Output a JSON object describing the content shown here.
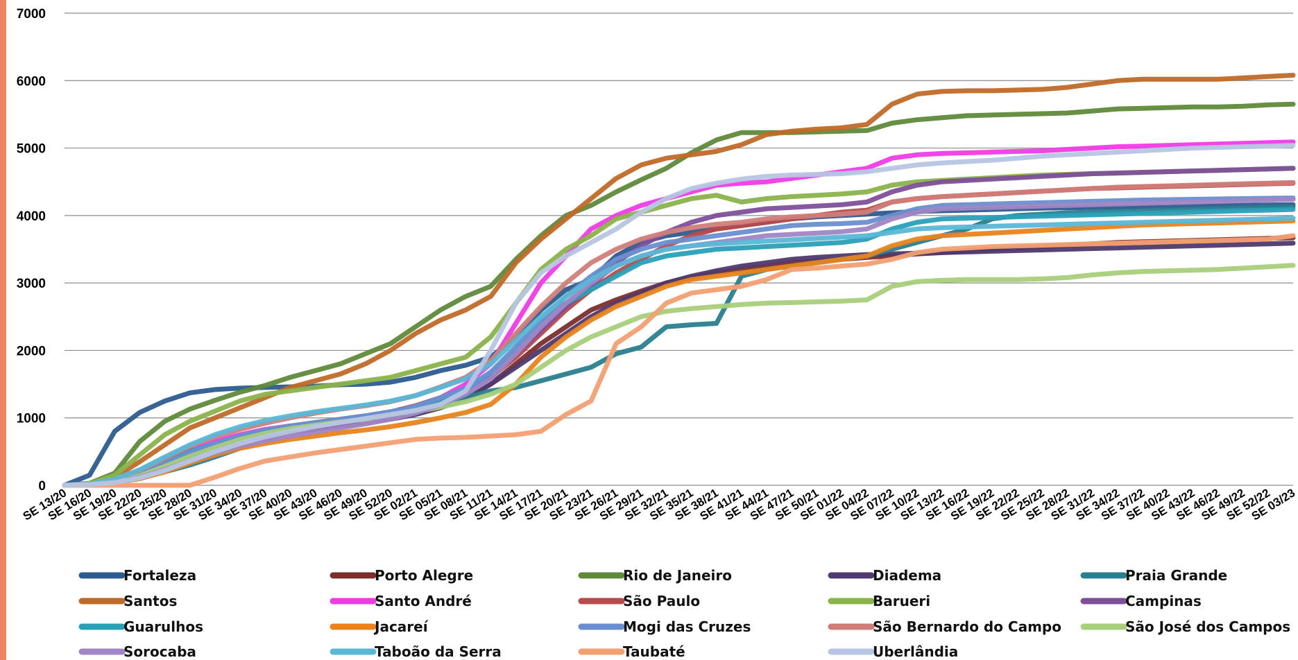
{
  "chart_data": {
    "type": "line",
    "title": "",
    "xlabel": "",
    "ylabel": "",
    "ylim": [
      0,
      7000
    ],
    "yticks": [
      "0",
      "1000",
      "2000",
      "3000",
      "4000",
      "5000",
      "6000",
      "7000"
    ],
    "grid": "horizontal",
    "legend_position": "bottom",
    "x": [
      "SE 13/20",
      "SE 16/20",
      "SE 19/20",
      "SE 22/20",
      "SE 25/20",
      "SE 28/20",
      "SE 31/20",
      "SE 34/20",
      "SE 37/20",
      "SE 40/20",
      "SE 43/20",
      "SE 46/20",
      "SE 49/20",
      "SE 52/20",
      "SE 02/21",
      "SE 05/21",
      "SE 08/21",
      "SE 11/21",
      "SE 14/21",
      "SE 17/21",
      "SE 20/21",
      "SE 23/21",
      "SE 26/21",
      "SE 29/21",
      "SE 32/21",
      "SE 35/21",
      "SE 38/21",
      "SE 41/21",
      "SE 44/21",
      "SE 47/21",
      "SE 50/21",
      "SE 01/22",
      "SE 04/22",
      "SE 07/22",
      "SE 10/22",
      "SE 13/22",
      "SE 16/22",
      "SE 19/22",
      "SE 22/22",
      "SE 25/22",
      "SE 28/22",
      "SE 31/22",
      "SE 34/22",
      "SE 37/22",
      "SE 40/22",
      "SE 43/22",
      "SE 46/22",
      "SE 49/22",
      "SE 52/22",
      "SE 03/23"
    ],
    "series": [
      {
        "name": "Fortaleza",
        "color": "#2c5b8f",
        "values": [
          0,
          150,
          800,
          1080,
          1250,
          1370,
          1420,
          1440,
          1450,
          1460,
          1470,
          1490,
          1500,
          1530,
          1600,
          1700,
          1780,
          1900,
          2200,
          2600,
          2900,
          3050,
          3400,
          3600,
          3700,
          3750,
          3800,
          3850,
          3900,
          3950,
          3980,
          4000,
          4020,
          4040,
          4060,
          4070,
          4080,
          4090,
          4100,
          4110,
          4115,
          4120,
          4125,
          4130,
          4135,
          4140,
          4145,
          4150,
          4155,
          4160
        ]
      },
      {
        "name": "Porto Alegre",
        "color": "#7b2e2e",
        "values": [
          0,
          20,
          80,
          200,
          350,
          500,
          600,
          700,
          780,
          850,
          900,
          950,
          1000,
          1050,
          1100,
          1200,
          1300,
          1500,
          1800,
          2100,
          2350,
          2600,
          2750,
          2880,
          3000,
          3080,
          3150,
          3200,
          3250,
          3300,
          3330,
          3350,
          3380,
          3400,
          3430,
          3450,
          3480,
          3500,
          3520,
          3540,
          3560,
          3580,
          3600,
          3610,
          3620,
          3630,
          3640,
          3650,
          3660,
          3670
        ]
      },
      {
        "name": "Rio de Janeiro",
        "color": "#5f8a3a",
        "values": [
          0,
          30,
          180,
          650,
          950,
          1130,
          1260,
          1380,
          1480,
          1600,
          1700,
          1800,
          1950,
          2100,
          2350,
          2600,
          2800,
          2950,
          3350,
          3700,
          4000,
          4150,
          4350,
          4530,
          4700,
          4930,
          5120,
          5230,
          5230,
          5230,
          5240,
          5250,
          5260,
          5370,
          5420,
          5450,
          5480,
          5490,
          5500,
          5510,
          5520,
          5550,
          5580,
          5590,
          5600,
          5610,
          5610,
          5620,
          5640,
          5650
        ]
      },
      {
        "name": "Diadema",
        "color": "#4e3a6e",
        "values": [
          0,
          15,
          60,
          150,
          280,
          430,
          560,
          650,
          720,
          780,
          830,
          880,
          930,
          980,
          1050,
          1150,
          1280,
          1500,
          1750,
          2000,
          2250,
          2500,
          2700,
          2850,
          3000,
          3100,
          3180,
          3250,
          3300,
          3350,
          3380,
          3400,
          3420,
          3430,
          3440,
          3450,
          3460,
          3470,
          3480,
          3490,
          3500,
          3510,
          3520,
          3530,
          3540,
          3550,
          3560,
          3570,
          3580,
          3590
        ]
      },
      {
        "name": "Praia Grande",
        "color": "#2a7f8f",
        "values": [
          0,
          10,
          40,
          100,
          200,
          300,
          420,
          550,
          680,
          780,
          850,
          900,
          950,
          1000,
          1080,
          1200,
          1300,
          1400,
          1450,
          1550,
          1650,
          1750,
          1950,
          2050,
          2350,
          2380,
          2400,
          3100,
          3200,
          3250,
          3300,
          3350,
          3400,
          3500,
          3600,
          3700,
          3800,
          3950,
          4000,
          4020,
          4040,
          4050,
          4060,
          4070,
          4080,
          4090,
          4100,
          4110,
          4120,
          4130
        ]
      },
      {
        "name": "Santos",
        "color": "#c06a28",
        "values": [
          0,
          20,
          120,
          350,
          600,
          850,
          1000,
          1150,
          1300,
          1450,
          1550,
          1650,
          1800,
          2000,
          2250,
          2450,
          2600,
          2800,
          3300,
          3650,
          3950,
          4250,
          4550,
          4750,
          4850,
          4900,
          4950,
          5050,
          5200,
          5250,
          5280,
          5300,
          5350,
          5650,
          5800,
          5840,
          5850,
          5850,
          5860,
          5870,
          5900,
          5950,
          6000,
          6020,
          6020,
          6020,
          6020,
          6040,
          6060,
          6080
        ]
      },
      {
        "name": "Santo André",
        "color": "#f03ce6",
        "values": [
          0,
          20,
          90,
          200,
          350,
          520,
          650,
          750,
          830,
          880,
          910,
          930,
          960,
          1020,
          1100,
          1300,
          1500,
          1800,
          2400,
          3000,
          3400,
          3800,
          4000,
          4150,
          4250,
          4350,
          4450,
          4480,
          4500,
          4550,
          4600,
          4650,
          4700,
          4850,
          4900,
          4920,
          4930,
          4940,
          4950,
          4960,
          4980,
          5000,
          5020,
          5030,
          5040,
          5050,
          5060,
          5070,
          5080,
          5090
        ]
      },
      {
        "name": "São Paulo",
        "color": "#b84a4a",
        "values": [
          0,
          15,
          70,
          180,
          320,
          470,
          610,
          720,
          800,
          870,
          930,
          980,
          1030,
          1090,
          1180,
          1300,
          1420,
          1600,
          1900,
          2250,
          2600,
          2900,
          3150,
          3350,
          3550,
          3700,
          3800,
          3850,
          3900,
          3950,
          4000,
          4050,
          4080,
          4200,
          4250,
          4280,
          4300,
          4320,
          4340,
          4360,
          4380,
          4400,
          4410,
          4420,
          4430,
          4440,
          4450,
          4460,
          4470,
          4480
        ]
      },
      {
        "name": "Barueri",
        "color": "#8ab34a",
        "values": [
          0,
          25,
          150,
          450,
          750,
          950,
          1100,
          1250,
          1350,
          1400,
          1450,
          1500,
          1550,
          1600,
          1700,
          1800,
          1900,
          2200,
          2700,
          3200,
          3500,
          3700,
          3950,
          4050,
          4150,
          4250,
          4300,
          4200,
          4250,
          4280,
          4300,
          4320,
          4350,
          4450,
          4500,
          4520,
          4540,
          4560,
          4580,
          4600,
          4610,
          4620,
          4630,
          4640,
          4650,
          4660,
          4670,
          4680,
          4690,
          4700
        ]
      },
      {
        "name": "Campinas",
        "color": "#7e4f9a",
        "values": [
          0,
          15,
          60,
          150,
          280,
          420,
          550,
          650,
          720,
          780,
          840,
          900,
          960,
          1030,
          1120,
          1250,
          1380,
          1600,
          1950,
          2300,
          2650,
          2950,
          3300,
          3550,
          3750,
          3900,
          4000,
          4050,
          4100,
          4120,
          4140,
          4160,
          4200,
          4350,
          4450,
          4500,
          4520,
          4540,
          4560,
          4580,
          4600,
          4620,
          4630,
          4640,
          4650,
          4660,
          4670,
          4680,
          4690,
          4700
        ]
      },
      {
        "name": "Guarulhos",
        "color": "#2aa0b8",
        "values": [
          0,
          15,
          70,
          190,
          350,
          500,
          620,
          720,
          800,
          860,
          910,
          960,
          1010,
          1070,
          1150,
          1280,
          1420,
          1650,
          2000,
          2400,
          2700,
          2900,
          3100,
          3300,
          3400,
          3450,
          3500,
          3520,
          3540,
          3560,
          3580,
          3600,
          3650,
          3800,
          3900,
          3950,
          3960,
          3970,
          3980,
          3990,
          4000,
          4010,
          4020,
          4030,
          4040,
          4050,
          4060,
          4070,
          4080,
          4090
        ]
      },
      {
        "name": "Jacareí",
        "color": "#e8841e",
        "values": [
          0,
          10,
          40,
          100,
          200,
          330,
          450,
          550,
          620,
          680,
          730,
          780,
          820,
          870,
          930,
          1000,
          1080,
          1200,
          1500,
          1900,
          2200,
          2450,
          2650,
          2800,
          2950,
          3050,
          3100,
          3150,
          3200,
          3250,
          3300,
          3350,
          3400,
          3550,
          3650,
          3700,
          3720,
          3740,
          3760,
          3780,
          3800,
          3820,
          3840,
          3860,
          3870,
          3880,
          3890,
          3900,
          3910,
          3920
        ]
      },
      {
        "name": "Mogi das Cruzes",
        "color": "#6a8fd0",
        "values": [
          0,
          15,
          65,
          170,
          320,
          480,
          620,
          730,
          820,
          880,
          930,
          980,
          1030,
          1090,
          1170,
          1300,
          1440,
          1680,
          2050,
          2450,
          2800,
          3100,
          3350,
          3500,
          3600,
          3650,
          3700,
          3750,
          3800,
          3850,
          3870,
          3880,
          3900,
          4000,
          4100,
          4150,
          4160,
          4170,
          4180,
          4190,
          4200,
          4210,
          4220,
          4230,
          4235,
          4240,
          4245,
          4250,
          4255,
          4260
        ]
      },
      {
        "name": "São Bernardo do Campo",
        "color": "#d07d7a",
        "values": [
          0,
          20,
          85,
          220,
          400,
          580,
          720,
          830,
          920,
          1000,
          1070,
          1130,
          1180,
          1240,
          1330,
          1460,
          1600,
          1850,
          2250,
          2650,
          3000,
          3300,
          3500,
          3650,
          3750,
          3820,
          3870,
          3900,
          3950,
          3980,
          4000,
          4020,
          4050,
          4200,
          4250,
          4280,
          4300,
          4320,
          4340,
          4360,
          4380,
          4400,
          4420,
          4430,
          4440,
          4450,
          4460,
          4470,
          4480,
          4490
        ]
      },
      {
        "name": "São José dos Campos",
        "color": "#a8cf7a",
        "values": [
          0,
          10,
          50,
          140,
          280,
          430,
          560,
          680,
          770,
          840,
          890,
          940,
          980,
          1030,
          1090,
          1160,
          1240,
          1350,
          1500,
          1750,
          2000,
          2200,
          2350,
          2500,
          2580,
          2620,
          2650,
          2680,
          2700,
          2710,
          2720,
          2730,
          2750,
          2950,
          3020,
          3040,
          3050,
          3050,
          3050,
          3060,
          3080,
          3120,
          3150,
          3170,
          3180,
          3190,
          3200,
          3220,
          3240,
          3260
        ]
      },
      {
        "name": "Sorocaba",
        "color": "#a086c4",
        "values": [
          0,
          10,
          45,
          120,
          230,
          360,
          480,
          580,
          660,
          730,
          790,
          850,
          910,
          980,
          1070,
          1200,
          1350,
          1580,
          1950,
          2350,
          2700,
          3000,
          3250,
          3400,
          3500,
          3550,
          3600,
          3650,
          3700,
          3720,
          3740,
          3760,
          3800,
          3950,
          4050,
          4100,
          4110,
          4120,
          4130,
          4140,
          4150,
          4160,
          4170,
          4180,
          4190,
          4200,
          4210,
          4220,
          4230,
          4240
        ]
      },
      {
        "name": "Taboão da Serra",
        "color": "#5ab7d6",
        "values": [
          0,
          20,
          90,
          230,
          420,
          600,
          750,
          870,
          960,
          1030,
          1090,
          1140,
          1190,
          1250,
          1330,
          1450,
          1580,
          1800,
          2150,
          2500,
          2800,
          3050,
          3250,
          3400,
          3500,
          3550,
          3580,
          3600,
          3620,
          3640,
          3660,
          3680,
          3700,
          3750,
          3800,
          3820,
          3830,
          3840,
          3850,
          3860,
          3870,
          3880,
          3890,
          3900,
          3910,
          3920,
          3930,
          3940,
          3950,
          3960
        ]
      },
      {
        "name": "Taubaté",
        "color": "#f2a072",
        "values": [
          0,
          0,
          0,
          0,
          0,
          0,
          120,
          250,
          360,
          420,
          480,
          530,
          580,
          630,
          680,
          700,
          710,
          730,
          750,
          800,
          1050,
          1250,
          2100,
          2350,
          2700,
          2850,
          2900,
          2950,
          3050,
          3200,
          3220,
          3250,
          3280,
          3350,
          3450,
          3500,
          3520,
          3540,
          3550,
          3560,
          3570,
          3580,
          3590,
          3600,
          3610,
          3620,
          3630,
          3640,
          3650,
          3700
        ]
      },
      {
        "name": "Uberlândia",
        "color": "#b7c5e3",
        "values": [
          0,
          10,
          40,
          110,
          220,
          360,
          500,
          620,
          720,
          800,
          870,
          930,
          990,
          1050,
          1110,
          1200,
          1400,
          2000,
          2700,
          3150,
          3400,
          3600,
          3800,
          4050,
          4250,
          4400,
          4480,
          4540,
          4580,
          4600,
          4610,
          4620,
          4650,
          4700,
          4750,
          4780,
          4800,
          4820,
          4850,
          4880,
          4900,
          4920,
          4940,
          4960,
          4980,
          5000,
          5010,
          5020,
          5030,
          5040
        ]
      }
    ]
  }
}
